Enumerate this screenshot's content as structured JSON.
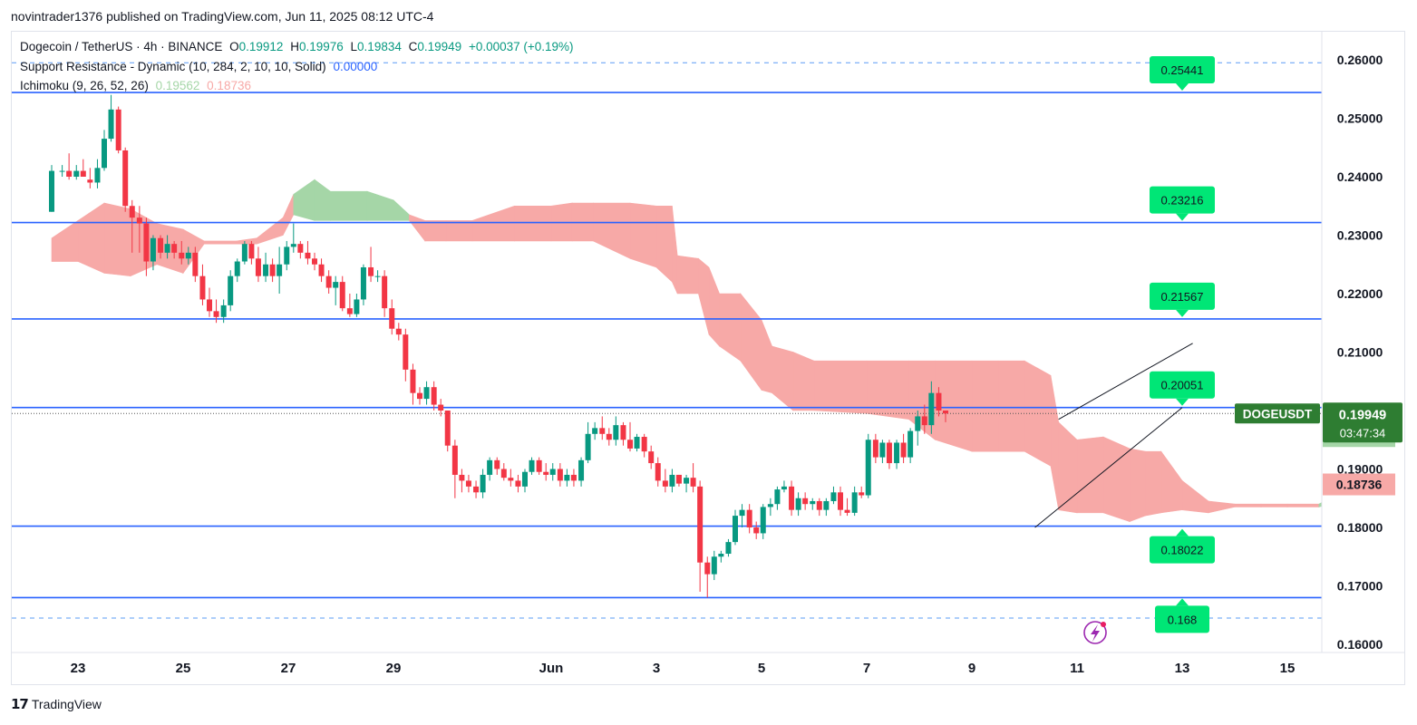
{
  "header": {
    "publish_line": "novintrader1376 published on TradingView.com, Jun 11, 2025 08:12 UTC-4"
  },
  "legend": {
    "symbol": "Dogecoin / TetherUS · 4h · BINANCE",
    "o_label": "O",
    "o_value": "0.19912",
    "h_label": "H",
    "h_value": "0.19976",
    "l_label": "L",
    "l_value": "0.19834",
    "c_label": "C",
    "c_value": "0.19949",
    "change": "+0.00037 (+0.19%)",
    "sr_label": "Support Resistance - Dynamic (10, 284, 2, 10, 10, Solid)",
    "sr_value": "0.00000",
    "ichi_label": "Ichimoku (9, 26, 52, 26)",
    "ichi_value_a": "0.19562",
    "ichi_value_b": "0.18736"
  },
  "footer": {
    "brand": "TradingView",
    "logo_text": "17"
  },
  "colors": {
    "up": "#089981",
    "down": "#f23645",
    "level_line": "#2962ff",
    "label_green": "#00e676",
    "cloud_red": "#f7a9a7",
    "cloud_green": "#a5d6a7",
    "badge_dark_green": "#2e7d32"
  },
  "chart_data": {
    "type": "candlestick",
    "y_range": [
      0.158,
      0.2635
    ],
    "x_range": [
      22.5,
      15.7
    ],
    "y_ticks": [
      "0.26000",
      "0.25000",
      "0.24000",
      "0.23000",
      "0.22000",
      "0.21000",
      "0.20000",
      "0.19000",
      "0.18000",
      "0.17000",
      "0.16000"
    ],
    "y_tick_values": [
      0.26,
      0.25,
      0.24,
      0.23,
      0.22,
      0.21,
      0.2,
      0.19,
      0.18,
      0.17,
      0.16
    ],
    "x_ticks": [
      {
        "label": "23",
        "day": 23
      },
      {
        "label": "25",
        "day": 25
      },
      {
        "label": "27",
        "day": 27
      },
      {
        "label": "29",
        "day": 29
      },
      {
        "label": "Jun",
        "day": 32
      },
      {
        "label": "3",
        "day": 34
      },
      {
        "label": "5",
        "day": 36
      },
      {
        "label": "7",
        "day": 38
      },
      {
        "label": "9",
        "day": 40
      },
      {
        "label": "11",
        "day": 42
      },
      {
        "label": "13",
        "day": 44
      },
      {
        "label": "15",
        "day": 46
      }
    ],
    "levels": [
      {
        "value": 0.25441,
        "label": "0.25441",
        "style": "solid"
      },
      {
        "value": 0.23216,
        "label": "0.23216",
        "style": "solid"
      },
      {
        "value": 0.21567,
        "label": "0.21567",
        "style": "solid"
      },
      {
        "value": 0.20051,
        "label": "0.20051",
        "style": "solid"
      },
      {
        "value": 0.18022,
        "label": "0.18022",
        "style": "solid"
      },
      {
        "value": 0.168,
        "label": "0.168",
        "style": "solid"
      }
    ],
    "dashed_levels": [
      0.2595,
      0.1645
    ],
    "price_badge": {
      "symbol": "DOGEUSDT",
      "price": "0.19949",
      "countdown": "03:47:34",
      "value": 0.19949
    },
    "ichimoku_badges": [
      {
        "label": "0.19562",
        "value": 0.19562,
        "kind": "span_a"
      },
      {
        "label": "0.18736",
        "value": 0.18736,
        "kind": "span_b"
      }
    ],
    "channel": {
      "upper": [
        [
          41.65,
          0.1985
        ],
        [
          44.2,
          0.2115
        ]
      ],
      "lower": [
        [
          41.2,
          0.18
        ],
        [
          44.0,
          0.2005
        ]
      ]
    },
    "cloud": [
      [
        22.5,
        0.2255,
        0.2295
      ],
      [
        23.0,
        0.2255,
        0.2325
      ],
      [
        23.5,
        0.2235,
        0.2355
      ],
      [
        24.0,
        0.223,
        0.2345
      ],
      [
        24.5,
        0.225,
        0.232
      ],
      [
        25.0,
        0.2235,
        0.231
      ],
      [
        25.4,
        0.2285,
        0.229
      ],
      [
        26.0,
        0.2285,
        0.229
      ],
      [
        26.4,
        0.2285,
        0.2295
      ],
      [
        26.9,
        0.23,
        0.233
      ],
      [
        27.1,
        0.2335,
        0.237
      ],
      [
        27.5,
        0.2325,
        0.2395
      ],
      [
        27.8,
        0.2325,
        0.2375
      ],
      [
        28.5,
        0.2325,
        0.2375
      ],
      [
        29.0,
        0.2325,
        0.236
      ],
      [
        29.3,
        0.2325,
        0.2335
      ],
      [
        29.6,
        0.229,
        0.2325
      ],
      [
        30.0,
        0.229,
        0.2325
      ],
      [
        30.5,
        0.229,
        0.2325
      ],
      [
        31.3,
        0.229,
        0.235
      ],
      [
        32.0,
        0.229,
        0.235
      ],
      [
        32.4,
        0.229,
        0.2355
      ],
      [
        32.8,
        0.229,
        0.2355
      ],
      [
        33.5,
        0.226,
        0.2355
      ],
      [
        34.0,
        0.2245,
        0.235
      ],
      [
        34.3,
        0.222,
        0.235
      ],
      [
        34.4,
        0.22,
        0.2265
      ],
      [
        34.8,
        0.22,
        0.226
      ],
      [
        35.0,
        0.213,
        0.2245
      ],
      [
        35.2,
        0.211,
        0.22
      ],
      [
        35.6,
        0.2085,
        0.22
      ],
      [
        36.0,
        0.2035,
        0.2155
      ],
      [
        36.2,
        0.203,
        0.211
      ],
      [
        36.6,
        0.2,
        0.21
      ],
      [
        37.0,
        0.2,
        0.2085
      ],
      [
        38.0,
        0.1995,
        0.2085
      ],
      [
        38.8,
        0.1985,
        0.2085
      ],
      [
        39.3,
        0.195,
        0.2085
      ],
      [
        40.0,
        0.193,
        0.2085
      ],
      [
        40.5,
        0.193,
        0.2085
      ],
      [
        41.0,
        0.193,
        0.2085
      ],
      [
        41.5,
        0.1905,
        0.206
      ],
      [
        41.65,
        0.183,
        0.198
      ],
      [
        42.0,
        0.1825,
        0.195
      ],
      [
        42.5,
        0.1825,
        0.1955
      ],
      [
        43.0,
        0.181,
        0.1935
      ],
      [
        43.3,
        0.182,
        0.193
      ],
      [
        43.6,
        0.1825,
        0.193
      ],
      [
        44.0,
        0.183,
        0.188
      ],
      [
        44.5,
        0.1825,
        0.1845
      ],
      [
        45.0,
        0.1835,
        0.184
      ],
      [
        45.5,
        0.1835,
        0.184
      ],
      [
        46.0,
        0.1835,
        0.184
      ],
      [
        46.6,
        0.1835,
        0.184
      ],
      [
        46.8,
        0.184,
        0.185
      ],
      [
        47.2,
        0.185,
        0.1875
      ],
      [
        47.6,
        0.184,
        0.19
      ],
      [
        48.0,
        0.184,
        0.1925
      ],
      [
        48.3,
        0.1875,
        0.1935
      ],
      [
        48.6,
        0.1875,
        0.1985
      ],
      [
        48.9,
        0.1875,
        0.1995
      ]
    ],
    "candles": [
      [
        22.5,
        0.234,
        0.242,
        0.234,
        0.241
      ],
      [
        22.7,
        0.241,
        0.242,
        0.24,
        0.241
      ],
      [
        22.83,
        0.241,
        0.244,
        0.2395,
        0.24
      ],
      [
        22.97,
        0.24,
        0.242,
        0.2395,
        0.241
      ],
      [
        23.1,
        0.241,
        0.243,
        0.24,
        0.24
      ],
      [
        23.23,
        0.2395,
        0.2415,
        0.238,
        0.239
      ],
      [
        23.37,
        0.239,
        0.243,
        0.238,
        0.2415
      ],
      [
        23.5,
        0.2415,
        0.248,
        0.241,
        0.2465
      ],
      [
        23.63,
        0.2465,
        0.254,
        0.246,
        0.2515
      ],
      [
        23.77,
        0.2515,
        0.252,
        0.244,
        0.2445
      ],
      [
        23.9,
        0.2445,
        0.245,
        0.234,
        0.235
      ],
      [
        24.03,
        0.235,
        0.236,
        0.227,
        0.233
      ],
      [
        24.17,
        0.233,
        0.235,
        0.227,
        0.232
      ],
      [
        24.3,
        0.232,
        0.233,
        0.223,
        0.2255
      ],
      [
        24.43,
        0.2255,
        0.23,
        0.224,
        0.2295
      ],
      [
        24.57,
        0.2295,
        0.23,
        0.226,
        0.227
      ],
      [
        24.7,
        0.227,
        0.23,
        0.226,
        0.2285
      ],
      [
        24.83,
        0.2285,
        0.229,
        0.226,
        0.227
      ],
      [
        24.97,
        0.227,
        0.229,
        0.225,
        0.226
      ],
      [
        25.1,
        0.226,
        0.228,
        0.225,
        0.227
      ],
      [
        25.23,
        0.227,
        0.228,
        0.222,
        0.223
      ],
      [
        25.37,
        0.223,
        0.225,
        0.218,
        0.219
      ],
      [
        25.5,
        0.219,
        0.221,
        0.216,
        0.217
      ],
      [
        25.63,
        0.217,
        0.219,
        0.215,
        0.216
      ],
      [
        25.77,
        0.216,
        0.219,
        0.215,
        0.218
      ],
      [
        25.9,
        0.218,
        0.224,
        0.217,
        0.223
      ],
      [
        26.03,
        0.223,
        0.226,
        0.222,
        0.2255
      ],
      [
        26.17,
        0.2255,
        0.229,
        0.225,
        0.2285
      ],
      [
        26.3,
        0.2285,
        0.229,
        0.225,
        0.226
      ],
      [
        26.43,
        0.226,
        0.228,
        0.222,
        0.223
      ],
      [
        26.57,
        0.223,
        0.227,
        0.222,
        0.225
      ],
      [
        26.7,
        0.225,
        0.226,
        0.222,
        0.223
      ],
      [
        26.83,
        0.223,
        0.228,
        0.22,
        0.225
      ],
      [
        26.97,
        0.225,
        0.229,
        0.224,
        0.228
      ],
      [
        27.1,
        0.228,
        0.232,
        0.227,
        0.2285
      ],
      [
        27.23,
        0.2285,
        0.229,
        0.226,
        0.227
      ],
      [
        27.37,
        0.227,
        0.229,
        0.225,
        0.226
      ],
      [
        27.5,
        0.226,
        0.227,
        0.224,
        0.225
      ],
      [
        27.63,
        0.225,
        0.226,
        0.222,
        0.223
      ],
      [
        27.77,
        0.223,
        0.224,
        0.22,
        0.221
      ],
      [
        27.9,
        0.221,
        0.223,
        0.218,
        0.222
      ],
      [
        28.03,
        0.222,
        0.223,
        0.217,
        0.2175
      ],
      [
        28.17,
        0.2175,
        0.22,
        0.216,
        0.2165
      ],
      [
        28.3,
        0.2165,
        0.22,
        0.216,
        0.219
      ],
      [
        28.43,
        0.219,
        0.225,
        0.218,
        0.2245
      ],
      [
        28.57,
        0.2245,
        0.228,
        0.222,
        0.223
      ],
      [
        28.7,
        0.223,
        0.224,
        0.222,
        0.223
      ],
      [
        28.83,
        0.223,
        0.224,
        0.216,
        0.2175
      ],
      [
        28.97,
        0.2175,
        0.219,
        0.213,
        0.214
      ],
      [
        29.1,
        0.214,
        0.215,
        0.212,
        0.213
      ],
      [
        29.23,
        0.213,
        0.214,
        0.205,
        0.207
      ],
      [
        29.37,
        0.207,
        0.208,
        0.201,
        0.203
      ],
      [
        29.5,
        0.203,
        0.204,
        0.201,
        0.202
      ],
      [
        29.63,
        0.202,
        0.205,
        0.201,
        0.204
      ],
      [
        29.77,
        0.204,
        0.205,
        0.2,
        0.201
      ],
      [
        29.9,
        0.201,
        0.202,
        0.199,
        0.2
      ],
      [
        30.03,
        0.2,
        0.2,
        0.193,
        0.194
      ],
      [
        30.17,
        0.194,
        0.195,
        0.185,
        0.189
      ],
      [
        30.3,
        0.189,
        0.19,
        0.186,
        0.188
      ],
      [
        30.43,
        0.188,
        0.189,
        0.186,
        0.187
      ],
      [
        30.57,
        0.187,
        0.188,
        0.185,
        0.186
      ],
      [
        30.7,
        0.186,
        0.19,
        0.185,
        0.189
      ],
      [
        30.83,
        0.189,
        0.192,
        0.188,
        0.1915
      ],
      [
        30.97,
        0.1915,
        0.192,
        0.189,
        0.19
      ],
      [
        31.1,
        0.19,
        0.191,
        0.188,
        0.1885
      ],
      [
        31.23,
        0.1885,
        0.19,
        0.187,
        0.188
      ],
      [
        31.37,
        0.188,
        0.189,
        0.186,
        0.187
      ],
      [
        31.5,
        0.187,
        0.19,
        0.186,
        0.1895
      ],
      [
        31.63,
        0.1895,
        0.192,
        0.189,
        0.1915
      ],
      [
        31.77,
        0.1915,
        0.192,
        0.189,
        0.1895
      ],
      [
        31.9,
        0.1895,
        0.191,
        0.188,
        0.189
      ],
      [
        32.03,
        0.189,
        0.191,
        0.188,
        0.19
      ],
      [
        32.17,
        0.19,
        0.191,
        0.187,
        0.188
      ],
      [
        32.3,
        0.188,
        0.19,
        0.187,
        0.189
      ],
      [
        32.43,
        0.189,
        0.19,
        0.187,
        0.188
      ],
      [
        32.57,
        0.188,
        0.192,
        0.187,
        0.1915
      ],
      [
        32.7,
        0.1915,
        0.198,
        0.191,
        0.196
      ],
      [
        32.83,
        0.196,
        0.198,
        0.195,
        0.197
      ],
      [
        32.97,
        0.197,
        0.199,
        0.195,
        0.196
      ],
      [
        33.1,
        0.196,
        0.197,
        0.194,
        0.195
      ],
      [
        33.23,
        0.195,
        0.199,
        0.194,
        0.1975
      ],
      [
        33.37,
        0.1975,
        0.198,
        0.194,
        0.195
      ],
      [
        33.5,
        0.195,
        0.198,
        0.193,
        0.1935
      ],
      [
        33.63,
        0.1935,
        0.196,
        0.193,
        0.1955
      ],
      [
        33.77,
        0.1955,
        0.196,
        0.192,
        0.193
      ],
      [
        33.9,
        0.193,
        0.194,
        0.19,
        0.191
      ],
      [
        34.03,
        0.191,
        0.192,
        0.187,
        0.188
      ],
      [
        34.17,
        0.188,
        0.19,
        0.186,
        0.187
      ],
      [
        34.3,
        0.187,
        0.19,
        0.186,
        0.189
      ],
      [
        34.43,
        0.189,
        0.189,
        0.187,
        0.1875
      ],
      [
        34.57,
        0.1875,
        0.189,
        0.186,
        0.1885
      ],
      [
        34.7,
        0.1885,
        0.191,
        0.186,
        0.187
      ],
      [
        34.83,
        0.187,
        0.188,
        0.169,
        0.174
      ],
      [
        34.97,
        0.174,
        0.175,
        0.168,
        0.172
      ],
      [
        35.1,
        0.172,
        0.176,
        0.171,
        0.175
      ],
      [
        35.23,
        0.175,
        0.176,
        0.174,
        0.1755
      ],
      [
        35.37,
        0.1755,
        0.178,
        0.175,
        0.1775
      ],
      [
        35.5,
        0.1775,
        0.183,
        0.177,
        0.182
      ],
      [
        35.63,
        0.182,
        0.184,
        0.18,
        0.183
      ],
      [
        35.77,
        0.183,
        0.184,
        0.179,
        0.18
      ],
      [
        35.9,
        0.18,
        0.181,
        0.178,
        0.179
      ],
      [
        36.03,
        0.179,
        0.184,
        0.178,
        0.1835
      ],
      [
        36.17,
        0.1835,
        0.185,
        0.182,
        0.184
      ],
      [
        36.3,
        0.184,
        0.187,
        0.183,
        0.1865
      ],
      [
        36.43,
        0.1865,
        0.188,
        0.186,
        0.187
      ],
      [
        36.57,
        0.187,
        0.188,
        0.182,
        0.183
      ],
      [
        36.7,
        0.183,
        0.186,
        0.182,
        0.185
      ],
      [
        36.83,
        0.185,
        0.186,
        0.183,
        0.184
      ],
      [
        36.97,
        0.184,
        0.185,
        0.183,
        0.1845
      ],
      [
        37.1,
        0.1845,
        0.185,
        0.182,
        0.183
      ],
      [
        37.23,
        0.183,
        0.185,
        0.182,
        0.1845
      ],
      [
        37.37,
        0.1845,
        0.187,
        0.184,
        0.186
      ],
      [
        37.5,
        0.186,
        0.187,
        0.182,
        0.183
      ],
      [
        37.63,
        0.183,
        0.185,
        0.182,
        0.1825
      ],
      [
        37.77,
        0.1825,
        0.187,
        0.182,
        0.186
      ],
      [
        37.9,
        0.186,
        0.187,
        0.185,
        0.1855
      ],
      [
        38.03,
        0.1855,
        0.196,
        0.185,
        0.195
      ],
      [
        38.17,
        0.195,
        0.196,
        0.191,
        0.192
      ],
      [
        38.3,
        0.192,
        0.195,
        0.191,
        0.1945
      ],
      [
        38.43,
        0.1945,
        0.195,
        0.19,
        0.191
      ],
      [
        38.57,
        0.191,
        0.195,
        0.19,
        0.1945
      ],
      [
        38.7,
        0.1945,
        0.196,
        0.191,
        0.192
      ],
      [
        38.83,
        0.192,
        0.197,
        0.191,
        0.1965
      ],
      [
        38.97,
        0.1965,
        0.2,
        0.194,
        0.199
      ],
      [
        39.1,
        0.199,
        0.201,
        0.196,
        0.1975
      ],
      [
        39.23,
        0.1975,
        0.205,
        0.196,
        0.203
      ],
      [
        39.37,
        0.203,
        0.204,
        0.199,
        0.2
      ],
      [
        39.5,
        0.2,
        0.2,
        0.198,
        0.1995
      ]
    ]
  }
}
